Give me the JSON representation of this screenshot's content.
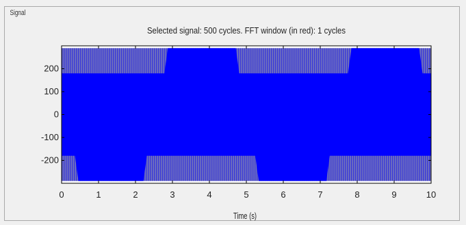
{
  "panel": {
    "title": "Signal"
  },
  "chart_data": {
    "type": "line",
    "title": "Selected signal: 500 cycles. FFT window (in red): 1 cycles",
    "xlabel": "Time (s)",
    "ylabel": "",
    "xlim": [
      0,
      10
    ],
    "ylim": [
      -300,
      300
    ],
    "xticks": [
      0,
      1,
      2,
      3,
      4,
      5,
      6,
      7,
      8,
      9,
      10
    ],
    "yticks": [
      200,
      100,
      0,
      -100,
      -200
    ],
    "grid": false,
    "series": [
      {
        "color": "#0000ff",
        "oscillation": "dense, 500 cycles over 10 s",
        "inner_band": [
          -150,
          150
        ],
        "upper_envelope": {
          "low": 160,
          "high": 290,
          "high_intervals": [
            [
              2.82,
              4.77
            ],
            [
              7.79,
              9.73
            ]
          ],
          "low_intervals": [
            [
              0,
              2.82
            ],
            [
              4.77,
              7.79
            ],
            [
              9.73,
              10
            ]
          ]
        },
        "lower_envelope": {
          "high": -160,
          "low": -290,
          "low_intervals": [
            [
              0.4,
              2.27
            ],
            [
              5.28,
              7.22
            ]
          ],
          "high_intervals": [
            [
              0,
              0.4
            ],
            [
              2.27,
              5.28
            ],
            [
              7.22,
              10
            ]
          ]
        }
      }
    ]
  },
  "colors": {
    "background": "#f0f0f0",
    "plot_background": "#ffffff",
    "signal": "#0000ff",
    "hatch": "#7070b8"
  }
}
